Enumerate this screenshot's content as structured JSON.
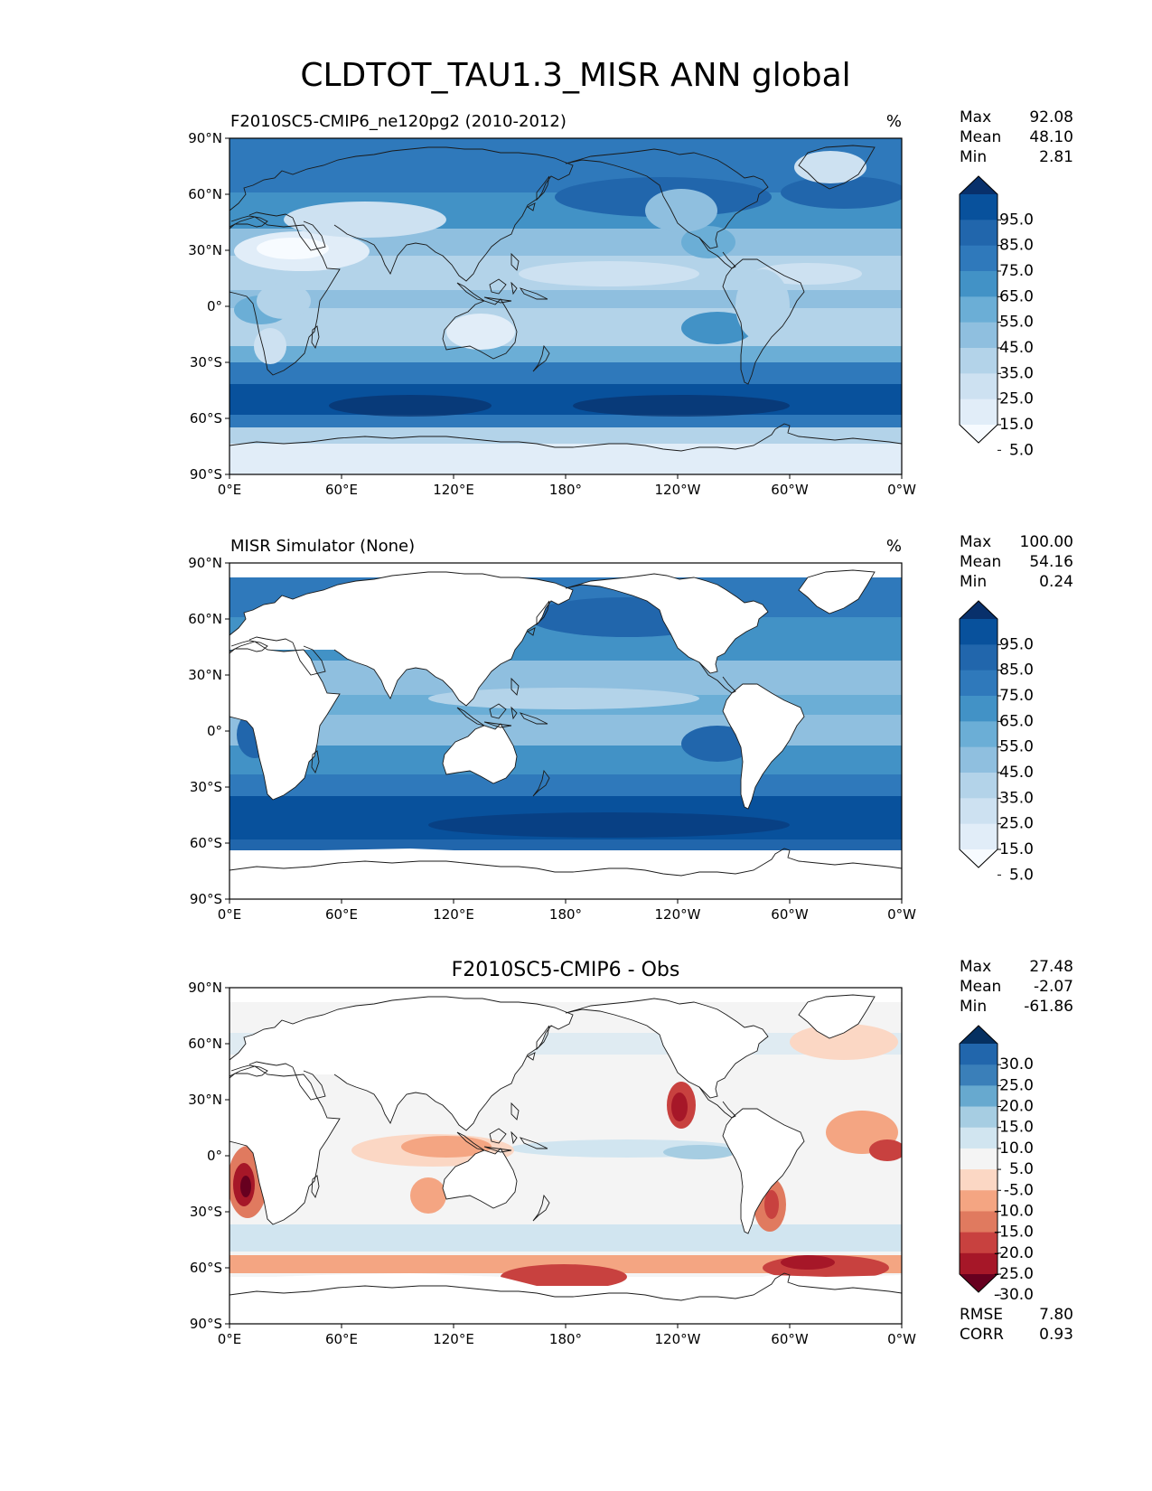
{
  "figure": {
    "title": "CLDTOT_TAU1.3_MISR ANN global"
  },
  "axes": {
    "lat_labels": [
      "90°N",
      "60°N",
      "30°N",
      "0°",
      "30°S",
      "60°S",
      "90°S"
    ],
    "lon_labels": [
      "0°E",
      "60°E",
      "120°E",
      "180°",
      "120°W",
      "60°W",
      "0°W"
    ]
  },
  "panels": [
    {
      "id": "test",
      "left_title": "F2010SC5-CMIP6_ne120pg2 (2010-2012)",
      "center_title": "",
      "units": "%",
      "stats": [
        {
          "label": "Max",
          "value": "92.08"
        },
        {
          "label": "Mean",
          "value": "48.10"
        },
        {
          "label": "Min",
          "value": "2.81"
        }
      ],
      "colorbar": {
        "ticks": [
          "95.0",
          "85.0",
          "75.0",
          "65.0",
          "55.0",
          "45.0",
          "35.0",
          "25.0",
          "15.0",
          "5.0"
        ],
        "colors": [
          "#08306b",
          "#08519c",
          "#2166ac",
          "#2f79bb",
          "#4292c6",
          "#6baed6",
          "#8fbfdf",
          "#b3d3e9",
          "#cde1f1",
          "#e1edf8",
          "#f7fbff"
        ]
      },
      "metrics": []
    },
    {
      "id": "reference",
      "left_title": "MISR Simulator (None)",
      "center_title": "",
      "units": "%",
      "stats": [
        {
          "label": "Max",
          "value": "100.00"
        },
        {
          "label": "Mean",
          "value": "54.16"
        },
        {
          "label": "Min",
          "value": "0.24"
        }
      ],
      "colorbar": {
        "ticks": [
          "95.0",
          "85.0",
          "75.0",
          "65.0",
          "55.0",
          "45.0",
          "35.0",
          "25.0",
          "15.0",
          "5.0"
        ],
        "colors": [
          "#08306b",
          "#08519c",
          "#2166ac",
          "#2f79bb",
          "#4292c6",
          "#6baed6",
          "#8fbfdf",
          "#b3d3e9",
          "#cde1f1",
          "#e1edf8",
          "#f7fbff"
        ]
      },
      "metrics": []
    },
    {
      "id": "difference",
      "left_title": "",
      "center_title": "F2010SC5-CMIP6 - Obs",
      "units": "",
      "stats": [
        {
          "label": "Max",
          "value": "27.48"
        },
        {
          "label": "Mean",
          "value": "-2.07"
        },
        {
          "label": "Min",
          "value": "-61.86"
        }
      ],
      "colorbar": {
        "ticks": [
          "30.0",
          "25.0",
          "20.0",
          "15.0",
          "10.0",
          "5.0",
          "-5.0",
          "-10.0",
          "-15.0",
          "-20.0",
          "-25.0",
          "-30.0"
        ],
        "colors": [
          "#053061",
          "#2166ac",
          "#3a7fb9",
          "#67a9cf",
          "#a6cde2",
          "#d1e5f0",
          "#f4f4f4",
          "#fbd7c4",
          "#f4a582",
          "#e07a5f",
          "#c8413f",
          "#a61728",
          "#67001f"
        ]
      },
      "metrics": [
        {
          "label": "RMSE",
          "value": "7.80"
        },
        {
          "label": "CORR",
          "value": "0.93"
        }
      ]
    }
  ]
}
